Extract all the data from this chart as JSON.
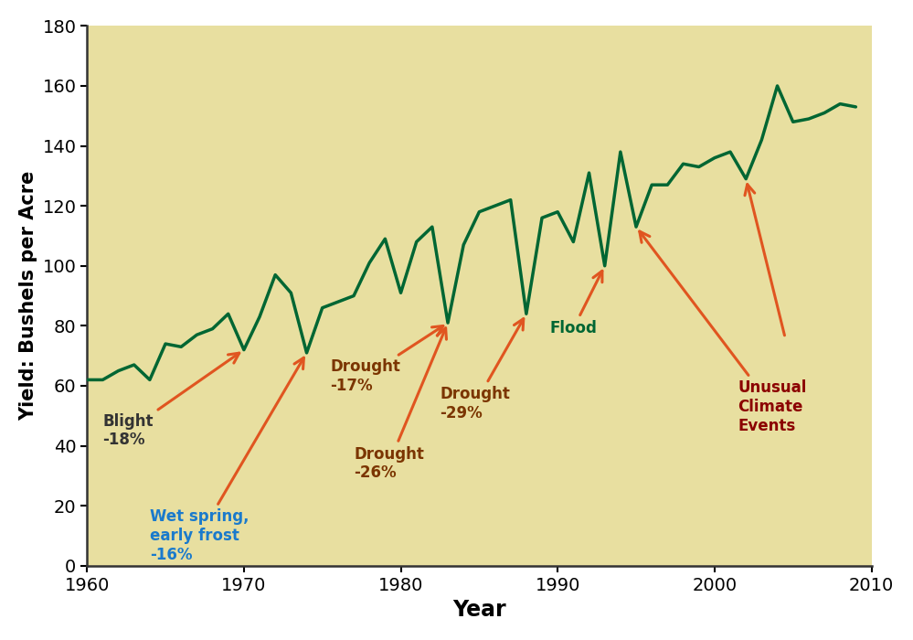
{
  "years": [
    1960,
    1961,
    1962,
    1963,
    1964,
    1965,
    1966,
    1967,
    1968,
    1969,
    1970,
    1971,
    1972,
    1973,
    1974,
    1975,
    1976,
    1977,
    1978,
    1979,
    1980,
    1981,
    1982,
    1983,
    1984,
    1985,
    1986,
    1987,
    1988,
    1989,
    1990,
    1991,
    1992,
    1993,
    1994,
    1995,
    1996,
    1997,
    1998,
    1999,
    2000,
    2001,
    2002,
    2003,
    2004,
    2005,
    2006,
    2007,
    2008,
    2009
  ],
  "yields": [
    62,
    62,
    65,
    67,
    62,
    74,
    73,
    77,
    79,
    84,
    72,
    83,
    97,
    91,
    71,
    86,
    88,
    90,
    101,
    109,
    91,
    108,
    113,
    81,
    107,
    118,
    120,
    122,
    84,
    116,
    118,
    108,
    131,
    100,
    138,
    113,
    127,
    127,
    134,
    133,
    136,
    138,
    129,
    142,
    160,
    148,
    149,
    151,
    154,
    153
  ],
  "line_color": "#006633",
  "line_width": 2.5,
  "plot_bg_color": "#e8dfa0",
  "fig_bg_color": "#ffffff",
  "xlabel": "Year",
  "ylabel": "Yield: Bushels per Acre",
  "xlim": [
    1960,
    2010
  ],
  "ylim": [
    0,
    180
  ],
  "yticks": [
    0,
    20,
    40,
    60,
    80,
    100,
    120,
    140,
    160,
    180
  ],
  "xticks": [
    1960,
    1970,
    1980,
    1990,
    2000,
    2010
  ],
  "xlabel_fontsize": 17,
  "ylabel_fontsize": 15,
  "tick_fontsize": 14,
  "annotation_fontsize": 12,
  "arrow_color": "#e05520",
  "arrow_lw": 2.2
}
